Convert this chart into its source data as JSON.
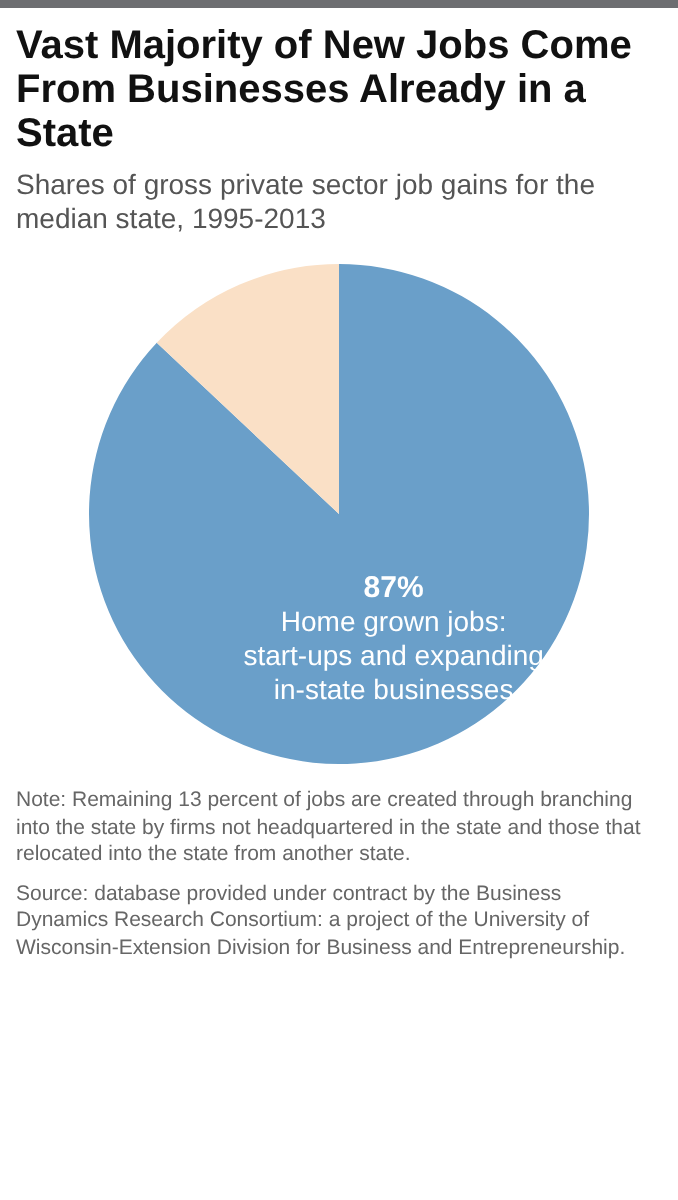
{
  "chart_data": {
    "type": "pie",
    "title": "Vast Majority of New Jobs Come From Businesses Already in a State",
    "subtitle": "Shares of gross private sector job gains for the median state, 1995-2013",
    "categories": [
      "Home grown jobs: start-ups and expanding in-state businesses",
      null
    ],
    "values": [
      87,
      13
    ],
    "colors": [
      "#6a9fc9",
      "#fae0c6"
    ],
    "value_labels": [
      "87%",
      null
    ],
    "legend": false,
    "annotations": [
      "Note: Remaining 13 percent of jobs are created through branching into the state by firms not headquartered in the state and those that relocated into the state from another state.",
      "Source: database provided under contract by the Business Dynamics Research Consortium: a project of the University of Wisconsin-Extension Division for Business and Entrepreneurship."
    ]
  }
}
